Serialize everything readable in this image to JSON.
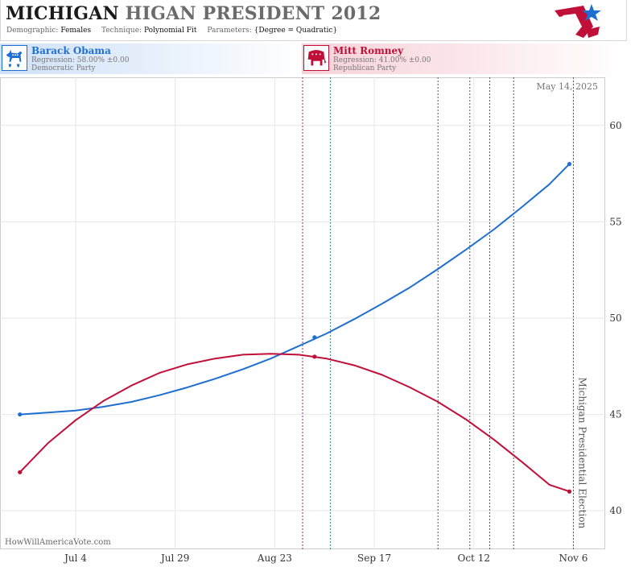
{
  "header": {
    "title_state": "MICHIGAN",
    "title_rest": "HIGAN PRESIDENT 2012",
    "demographic_label": "Demographic:",
    "demographic_value": "Females",
    "technique_label": "Technique:",
    "technique_value": "Polynomial Fit",
    "parameters_label": "Parameters:",
    "parameters_value": "{Degree = Quadratic}"
  },
  "candidates": [
    {
      "name": "Barack Obama",
      "regression": "Regression: 58.00% ±0.00",
      "party": "Democratic Party",
      "icon": "donkey-icon",
      "color": "#1f6fd1"
    },
    {
      "name": "Mitt Romney",
      "regression": "Regression: 41.00% ±0.00",
      "party": "Republican Party",
      "icon": "elephant-icon",
      "color": "#c0103a"
    }
  ],
  "chart_data": {
    "type": "line",
    "date_stamp": "May 14, 2025",
    "x_tick_labels": [
      "Jul 4",
      "Jul 29",
      "Aug 23",
      "Sep 17",
      "Oct 12",
      "Nov 6"
    ],
    "x_tick_dates": [
      "2012-07-04",
      "2012-07-29",
      "2012-08-23",
      "2012-09-17",
      "2012-10-12",
      "2012-11-06"
    ],
    "x_range": [
      "2012-06-15",
      "2012-11-14"
    ],
    "y_ticks": [
      40,
      45,
      50,
      55,
      60
    ],
    "ylim": [
      38,
      62.5
    ],
    "grid": "vertical at x ticks, horizontal at y ticks",
    "event_lines": [
      {
        "date": "2012-08-30",
        "color": "#8e2b6b"
      },
      {
        "date": "2012-09-06",
        "color": "#2e7d7a"
      },
      {
        "date": "2012-10-03",
        "color": "#555555"
      },
      {
        "date": "2012-10-11",
        "color": "#555555"
      },
      {
        "date": "2012-10-16",
        "color": "#555555"
      },
      {
        "date": "2012-10-22",
        "color": "#555555"
      },
      {
        "date": "2012-11-06",
        "color": "#555555",
        "label": "Michigan Presidential Election"
      }
    ],
    "series": [
      {
        "name": "Barack Obama",
        "color": "#1f6fd1",
        "points": [
          [
            "2012-06-20",
            45.0
          ],
          [
            "2012-06-27",
            45.1
          ],
          [
            "2012-07-04",
            45.2
          ],
          [
            "2012-07-11",
            45.4
          ],
          [
            "2012-07-18",
            45.65
          ],
          [
            "2012-07-25",
            46.0
          ],
          [
            "2012-08-01",
            46.4
          ],
          [
            "2012-08-08",
            46.85
          ],
          [
            "2012-08-15",
            47.35
          ],
          [
            "2012-08-22",
            47.9
          ],
          [
            "2012-08-29",
            48.55
          ],
          [
            "2012-09-05",
            49.2
          ],
          [
            "2012-09-12",
            49.95
          ],
          [
            "2012-09-19",
            50.75
          ],
          [
            "2012-09-26",
            51.6
          ],
          [
            "2012-10-03",
            52.55
          ],
          [
            "2012-10-10",
            53.55
          ],
          [
            "2012-10-17",
            54.6
          ],
          [
            "2012-10-24",
            55.75
          ],
          [
            "2012-10-31",
            56.95
          ],
          [
            "2012-11-05",
            58.0
          ]
        ],
        "markers": [
          [
            "2012-06-20",
            45.0
          ],
          [
            "2012-09-02",
            49.0
          ],
          [
            "2012-11-05",
            58.0
          ]
        ]
      },
      {
        "name": "Mitt Romney",
        "color": "#c0103a",
        "points": [
          [
            "2012-06-20",
            42.0
          ],
          [
            "2012-06-27",
            43.5
          ],
          [
            "2012-07-04",
            44.7
          ],
          [
            "2012-07-11",
            45.7
          ],
          [
            "2012-07-18",
            46.5
          ],
          [
            "2012-07-25",
            47.15
          ],
          [
            "2012-08-01",
            47.6
          ],
          [
            "2012-08-08",
            47.9
          ],
          [
            "2012-08-15",
            48.1
          ],
          [
            "2012-08-22",
            48.15
          ],
          [
            "2012-08-29",
            48.1
          ],
          [
            "2012-09-05",
            47.9
          ],
          [
            "2012-09-12",
            47.55
          ],
          [
            "2012-09-19",
            47.05
          ],
          [
            "2012-09-26",
            46.4
          ],
          [
            "2012-10-03",
            45.65
          ],
          [
            "2012-10-10",
            44.75
          ],
          [
            "2012-10-17",
            43.7
          ],
          [
            "2012-10-24",
            42.55
          ],
          [
            "2012-10-31",
            41.35
          ],
          [
            "2012-11-05",
            41.0
          ]
        ],
        "markers": [
          [
            "2012-06-20",
            42.0
          ],
          [
            "2012-09-02",
            48.0
          ],
          [
            "2012-11-05",
            41.0
          ]
        ]
      }
    ]
  },
  "footer": {
    "site": "HowWillAmericaVote.com"
  }
}
